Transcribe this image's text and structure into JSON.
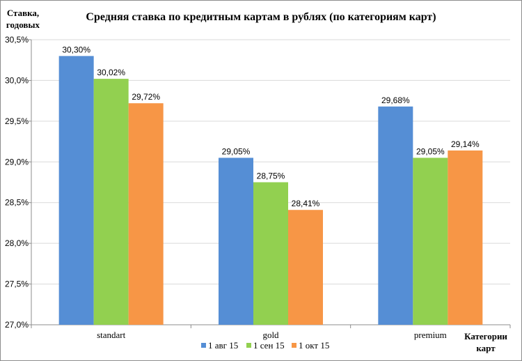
{
  "chart_data": {
    "type": "bar",
    "title": "Средняя ставка по кредитным картам в рублях (по категориям карт)",
    "ylabel": [
      "Ставка,",
      "годовых"
    ],
    "xlabel": [
      "Категории",
      "карт"
    ],
    "categories": [
      "standart",
      "gold",
      "premium"
    ],
    "series": [
      {
        "name": "1 авг 15",
        "color": "#558ED5",
        "values": [
          30.3,
          29.05,
          29.68
        ],
        "labels": [
          "30,30%",
          "29,05%",
          "29,68%"
        ]
      },
      {
        "name": "1 сен 15",
        "color": "#92D050",
        "values": [
          30.02,
          28.75,
          29.05
        ],
        "labels": [
          "30,02%",
          "28,75%",
          "29,05%"
        ]
      },
      {
        "name": "1 окт 15",
        "color": "#F79646",
        "values": [
          29.72,
          28.41,
          29.14
        ],
        "labels": [
          "29,72%",
          "28,41%",
          "29,14%"
        ]
      }
    ],
    "ylim": [
      27.0,
      30.5
    ],
    "yticks": [
      27.0,
      27.5,
      28.0,
      28.5,
      29.0,
      29.5,
      30.0,
      30.5
    ],
    "ytick_labels": [
      "27,0%",
      "27,5%",
      "28,0%",
      "28,5%",
      "29,0%",
      "29,5%",
      "30,0%",
      "30,5%"
    ],
    "grid": true,
    "legend_position": "bottom"
  }
}
